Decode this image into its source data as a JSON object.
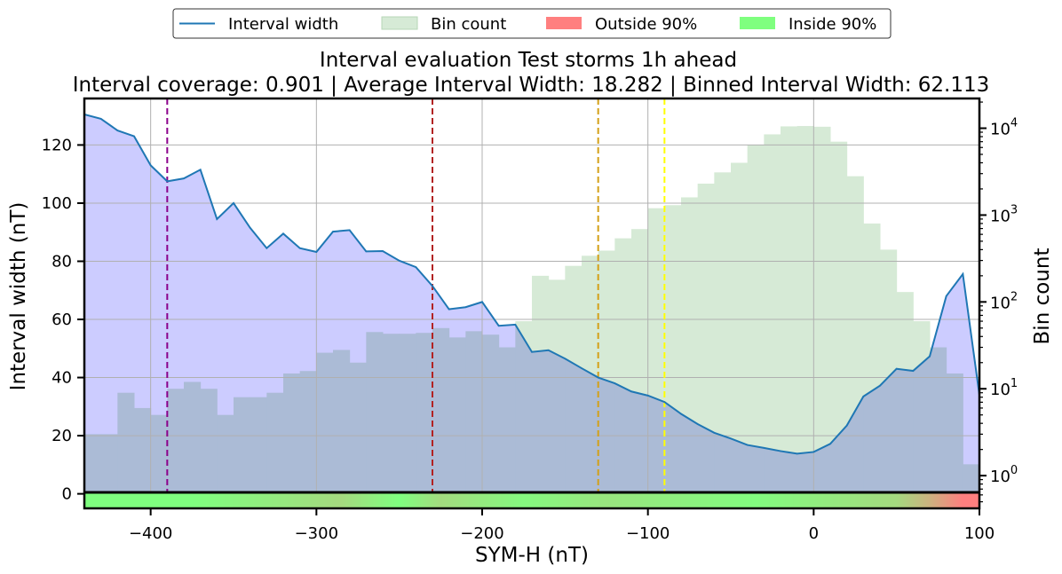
{
  "chart_data": {
    "type": "line",
    "title": "Interval evaluation Test storms 1h ahead",
    "subtitle": "Interval coverage: 0.901 | Average Interval Width: 18.282 | Binned Interval Width: 62.113",
    "xlabel": "SYM-H (nT)",
    "ylabel": "Interval width (nT)",
    "y2label": "Bin count",
    "xlim": [
      -440,
      100
    ],
    "ylim": [
      -5,
      136
    ],
    "y2scale": "log",
    "y2lim": [
      0.42,
      22000
    ],
    "grid": true,
    "legend_position": "top-center",
    "xticks": [
      -400,
      -300,
      -200,
      -100,
      0,
      100
    ],
    "xtick_labels": [
      "−400",
      "−300",
      "−200",
      "−100",
      "0",
      "100"
    ],
    "yticks": [
      0,
      20,
      40,
      60,
      80,
      100,
      120
    ],
    "y2ticks": [
      1,
      10,
      100,
      1000,
      10000
    ],
    "y2tick_base": "10",
    "y2tick_exponents": [
      "0",
      "1",
      "2",
      "3",
      "4"
    ],
    "legend": [
      {
        "label": "Interval width",
        "kind": "line",
        "color": "#1f77b4"
      },
      {
        "label": "Bin count",
        "kind": "patch",
        "color": "#d6ead6",
        "edge": "#b7d7b7"
      },
      {
        "label": "Outside 90%",
        "kind": "patch",
        "color": "#ff7f7f"
      },
      {
        "label": "Inside 90%",
        "kind": "patch",
        "color": "#7fff7f"
      }
    ],
    "interval_width": {
      "name": "Interval width",
      "color": "#1f77b4",
      "x": [
        -440,
        -430,
        -420,
        -410,
        -400,
        -390,
        -380,
        -370,
        -360,
        -350,
        -340,
        -330,
        -320,
        -310,
        -300,
        -290,
        -280,
        -270,
        -260,
        -250,
        -240,
        -230,
        -220,
        -210,
        -200,
        -190,
        -180,
        -170,
        -160,
        -150,
        -140,
        -130,
        -120,
        -110,
        -100,
        -90,
        -80,
        -70,
        -60,
        -50,
        -40,
        -30,
        -20,
        -10,
        0,
        10,
        20,
        30,
        40,
        50,
        60,
        70,
        80,
        90,
        100
      ],
      "y": [
        130.5,
        129,
        125,
        123,
        113,
        107.5,
        108.5,
        111.5,
        94.5,
        100,
        91.5,
        84.5,
        89.5,
        84.5,
        83.2,
        90.2,
        90.7,
        83.4,
        83.5,
        80.2,
        78,
        71.5,
        63.5,
        64.2,
        66,
        57.8,
        58.2,
        48.8,
        49.4,
        46.5,
        43.2,
        40,
        38,
        35.2,
        33.8,
        31.6,
        27.5,
        24,
        21,
        19,
        16.8,
        15.8,
        14.7,
        13.8,
        14.4,
        17.2,
        23.5,
        33.5,
        37.2,
        43,
        42.3,
        47.3,
        68,
        75.6,
        34
      ]
    },
    "interval_fill_color": "#ccccff",
    "bin_count": {
      "name": "Bin count",
      "color": "#d6ead6",
      "bin_width": 10,
      "bin_left_edges": [
        -440,
        -430,
        -420,
        -410,
        -400,
        -390,
        -380,
        -370,
        -360,
        -350,
        -340,
        -330,
        -320,
        -310,
        -300,
        -290,
        -280,
        -270,
        -260,
        -250,
        -240,
        -230,
        -220,
        -210,
        -200,
        -190,
        -180,
        -170,
        -160,
        -150,
        -140,
        -130,
        -120,
        -110,
        -100,
        -90,
        -80,
        -70,
        -60,
        -50,
        -40,
        -30,
        -20,
        -10,
        0,
        10,
        20,
        30,
        40,
        50,
        60,
        70,
        80,
        90
      ],
      "values": [
        3,
        3,
        9,
        6,
        5,
        10,
        12,
        10,
        5,
        8,
        8,
        9,
        15,
        16,
        26,
        28,
        20,
        45,
        43,
        43,
        44,
        50,
        39,
        46,
        42,
        30,
        60,
        200,
        180,
        260,
        340,
        390,
        540,
        690,
        1200,
        1300,
        1600,
        2300,
        3100,
        4000,
        6400,
        8500,
        10500,
        10600,
        10400,
        7000,
        2800,
        800,
        400,
        130,
        60,
        30,
        15,
        1.35
      ]
    },
    "vlines": [
      {
        "x": -390,
        "color": "#8b008b"
      },
      {
        "x": -230,
        "color": "#b22222"
      },
      {
        "x": -130,
        "color": "#d4a017"
      },
      {
        "x": -90,
        "color": "#ffff00"
      }
    ],
    "coverage_strip": {
      "inside_color": "#7fff7f",
      "outside_color": "#ff7f7f",
      "bands": [
        {
          "x0": -440,
          "x1": -310,
          "value": 0
        },
        {
          "x0": -310,
          "x1": -260,
          "value": 0.3
        },
        {
          "x0": -260,
          "x1": -240,
          "value": 0
        },
        {
          "x0": -240,
          "x1": -210,
          "value": 0.28
        },
        {
          "x0": -210,
          "x1": -140,
          "value": 0.05
        },
        {
          "x0": -140,
          "x1": -110,
          "value": 0.2
        },
        {
          "x0": -110,
          "x1": 40,
          "value": 0.02
        },
        {
          "x0": 40,
          "x1": 60,
          "value": 0.3
        },
        {
          "x0": 60,
          "x1": 80,
          "value": 0.6
        },
        {
          "x0": 80,
          "x1": 100,
          "value": 1
        }
      ]
    }
  }
}
